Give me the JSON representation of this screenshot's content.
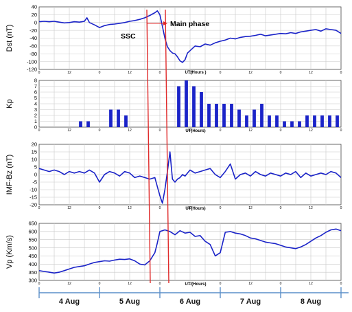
{
  "chart_data": [
    {
      "id": "dst",
      "type": "line",
      "ylabel": "Dst (nT)",
      "xlabel": "UT(Hours )",
      "ylim": [
        -120,
        40
      ],
      "yticks": [
        40,
        20,
        0,
        -20,
        -40,
        -60,
        -80,
        -100,
        -120
      ],
      "xlim": [
        0,
        120
      ],
      "xtick_labels": [
        "0",
        "12",
        "0",
        "12",
        "0",
        "12",
        "0",
        "12",
        "0",
        "12",
        "0"
      ],
      "color": "#1a23c8",
      "series": [
        {
          "x": [
            0,
            2,
            4,
            6,
            8,
            10,
            12,
            14,
            16,
            18,
            19,
            20,
            22,
            24,
            26,
            28,
            30,
            32,
            34,
            36,
            38,
            40,
            42,
            44,
            46,
            47,
            48,
            49,
            50,
            51,
            52,
            53,
            54,
            55,
            56,
            57,
            58,
            59,
            60,
            62,
            64,
            66,
            68,
            70,
            72,
            74,
            76,
            78,
            80,
            82,
            84,
            86,
            88,
            90,
            92,
            94,
            96,
            98,
            100,
            102,
            104,
            106,
            108,
            110,
            112,
            114,
            116,
            118,
            120
          ],
          "y": [
            2,
            3,
            2,
            3,
            1,
            -1,
            0,
            2,
            1,
            3,
            12,
            0,
            -6,
            -13,
            -8,
            -5,
            -4,
            -2,
            0,
            3,
            5,
            8,
            12,
            18,
            25,
            30,
            20,
            -10,
            -40,
            -62,
            -72,
            -78,
            -80,
            -88,
            -98,
            -102,
            -95,
            -78,
            -72,
            -60,
            -62,
            -55,
            -58,
            -52,
            -48,
            -45,
            -40,
            -42,
            -38,
            -36,
            -35,
            -33,
            -30,
            -34,
            -32,
            -30,
            -28,
            -29,
            -26,
            -28,
            -24,
            -22,
            -20,
            -18,
            -22,
            -16,
            -18,
            -20,
            -28
          ]
        }
      ]
    },
    {
      "id": "kp",
      "type": "bar",
      "ylabel": "Kp",
      "xlabel": "UT(Hours)",
      "ylim": [
        0,
        8
      ],
      "yticks": [
        8,
        7,
        6,
        5,
        4,
        3,
        2,
        1,
        0
      ],
      "xlim": [
        0,
        120
      ],
      "xtick_labels": [
        "0",
        "12",
        "0",
        "12",
        "0",
        "12",
        "0",
        "12",
        "0",
        "12",
        "0"
      ],
      "color": "#1a23c8",
      "bar_x": [
        1.5,
        4.5,
        7.5,
        10.5,
        13.5,
        16.5,
        19.5,
        22.5,
        25.5,
        28.5,
        31.5,
        34.5,
        37.5,
        40.5,
        43.5,
        46.5,
        49.5,
        52.5,
        55.5,
        58.5,
        61.5,
        64.5,
        67.5,
        70.5,
        73.5,
        76.5,
        79.5,
        82.5,
        85.5,
        88.5,
        91.5,
        94.5,
        97.5,
        100.5,
        103.5,
        106.5,
        109.5,
        112.5,
        115.5,
        118.5
      ],
      "values": [
        0,
        0,
        0,
        0,
        0,
        1,
        1,
        0,
        0,
        3,
        3,
        2,
        0,
        0,
        0,
        0,
        0,
        0,
        7,
        8,
        7,
        6,
        4,
        4,
        4,
        4,
        3,
        2,
        3,
        4,
        2,
        2,
        1,
        1,
        1,
        2,
        2,
        2,
        2,
        2
      ]
    },
    {
      "id": "bz",
      "type": "line",
      "ylabel": "IMF-Bz (nT)",
      "xlabel": "UT(Hours)",
      "ylim": [
        -20,
        20
      ],
      "yticks": [
        20,
        15,
        10,
        5,
        0,
        -5,
        -10,
        -15,
        -20
      ],
      "xlim": [
        0,
        120
      ],
      "xtick_labels": [
        "0",
        "12",
        "0",
        "12",
        "0",
        "12",
        "0",
        "12",
        "0",
        "12",
        "0"
      ],
      "color": "#1a23c8",
      "series": [
        {
          "x": [
            0,
            2,
            4,
            6,
            8,
            10,
            12,
            14,
            16,
            18,
            20,
            22,
            24,
            26,
            28,
            30,
            32,
            34,
            36,
            38,
            40,
            42,
            44,
            46,
            47,
            48,
            49,
            50,
            51,
            52,
            53,
            54,
            55,
            56,
            57,
            58,
            59,
            60,
            62,
            64,
            66,
            68,
            70,
            72,
            74,
            76,
            78,
            80,
            82,
            84,
            86,
            88,
            90,
            92,
            94,
            96,
            98,
            100,
            102,
            104,
            106,
            108,
            110,
            112,
            114,
            116,
            118,
            120
          ],
          "y": [
            4,
            3,
            2,
            3,
            2,
            0,
            2,
            1,
            2,
            1,
            3,
            1,
            -5,
            0,
            2,
            1,
            -1,
            2,
            1,
            -2,
            -1,
            -2,
            -3,
            -2,
            -8,
            -14,
            -19,
            -10,
            2,
            15,
            -3,
            -5,
            -3,
            -2,
            0,
            -1,
            1,
            3,
            1,
            2,
            3,
            4,
            0,
            -2,
            2,
            7,
            -3,
            0,
            1,
            -1,
            2,
            0,
            -1,
            1,
            0,
            -1,
            1,
            0,
            2,
            -2,
            1,
            -1,
            0,
            1,
            0,
            2,
            1,
            -2
          ]
        }
      ]
    },
    {
      "id": "vp",
      "type": "line",
      "ylabel": "Vp (Km/s)",
      "xlabel": "UT (Hours)",
      "ylim": [
        300,
        650
      ],
      "yticks": [
        650,
        600,
        550,
        500,
        450,
        400,
        350,
        300
      ],
      "xlim": [
        0,
        120
      ],
      "xtick_labels": [
        "0",
        "12",
        "0",
        "12",
        "0",
        "12",
        "0",
        "12",
        "0",
        "12",
        "0"
      ],
      "color": "#1a23c8",
      "series": [
        {
          "x": [
            0,
            2,
            4,
            6,
            8,
            10,
            12,
            14,
            16,
            18,
            20,
            22,
            24,
            26,
            28,
            30,
            32,
            34,
            36,
            38,
            40,
            42,
            44,
            46,
            47,
            48,
            50,
            52,
            54,
            56,
            58,
            60,
            62,
            64,
            66,
            68,
            70,
            72,
            74,
            76,
            78,
            80,
            82,
            84,
            86,
            88,
            90,
            92,
            94,
            96,
            98,
            100,
            102,
            104,
            106,
            108,
            110,
            112,
            114,
            116,
            118,
            120
          ],
          "y": [
            360,
            355,
            350,
            345,
            350,
            360,
            370,
            380,
            385,
            390,
            400,
            410,
            415,
            420,
            418,
            425,
            430,
            428,
            432,
            420,
            400,
            395,
            420,
            470,
            530,
            600,
            610,
            600,
            580,
            605,
            590,
            595,
            570,
            575,
            540,
            520,
            450,
            470,
            595,
            600,
            590,
            585,
            575,
            560,
            555,
            545,
            535,
            530,
            525,
            515,
            505,
            500,
            495,
            505,
            520,
            540,
            560,
            575,
            595,
            610,
            615,
            605
          ]
        }
      ]
    }
  ],
  "annotations": {
    "ssc": "SSC",
    "main_phase": "Main phase"
  },
  "days": [
    "4 Aug",
    "5 Aug",
    "6 Aug",
    "7 Aug",
    "8 Aug"
  ]
}
